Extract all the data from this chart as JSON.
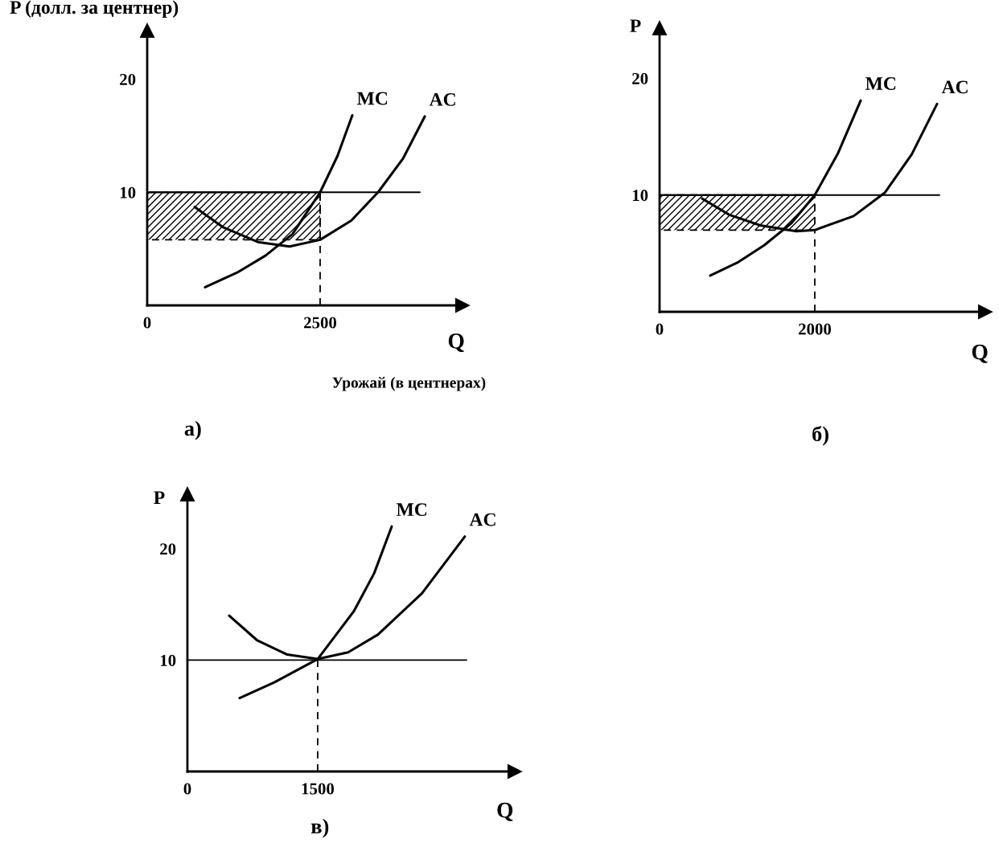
{
  "chart_data": [
    {
      "type": "line",
      "title": "а)",
      "xlabel": "Q",
      "ylabel": "P (долл. за центнер)",
      "annotations": [
        "Урожай (в центнерах)"
      ],
      "xlim": [
        0,
        4558
      ],
      "ylim": [
        0,
        24.3
      ],
      "xticks": [
        0,
        2500
      ],
      "yticks": [
        10,
        20
      ],
      "series": [
        {
          "color": "#000000",
          "x": [
            0,
            2500
          ],
          "values": [
            10,
            10
          ],
          "lower": [
            5.8,
            5.8
          ],
          "upper": [
            10,
            10
          ]
        },
        {
          "color": "#000000",
          "x": [
            0,
            3942
          ],
          "values": [
            10,
            10
          ]
        },
        {
          "color": "#000000",
          "line_style": "dashed",
          "x": [
            2500,
            2500
          ],
          "values": [
            0,
            10
          ]
        },
        {
          "name": "MC",
          "color": "#000000",
          "x": [
            837,
            1300,
            1709,
            2100,
            2500,
            2750,
            2965
          ],
          "values": [
            1.6,
            2.9,
            4.4,
            6.3,
            10,
            13.2,
            16.8
          ]
        },
        {
          "name": "AC",
          "color": "#000000",
          "x": [
            686,
            1100,
            1600,
            2058,
            2500,
            2950,
            3337,
            3700,
            4012
          ],
          "values": [
            8.7,
            6.9,
            5.6,
            5.2,
            5.8,
            7.5,
            10,
            13,
            16.7
          ]
        }
      ]
    },
    {
      "type": "line",
      "title": "б)",
      "xlabel": "Q",
      "ylabel": "P",
      "xlim": [
        0,
        4197
      ],
      "ylim": [
        0,
        24.3
      ],
      "xticks": [
        0,
        2000
      ],
      "yticks": [
        10,
        20
      ],
      "series": [
        {
          "color": "#000000",
          "x": [
            0,
            2000
          ],
          "values": [
            10,
            10
          ],
          "lower": [
            7.0,
            7.0
          ],
          "upper": [
            10,
            10
          ]
        },
        {
          "color": "#000000",
          "x": [
            0,
            3606
          ],
          "values": [
            10,
            10
          ]
        },
        {
          "color": "#000000",
          "line_style": "dashed",
          "x": [
            2000,
            2000
          ],
          "values": [
            0,
            7.0
          ]
        },
        {
          "name": "MC",
          "color": "#000000",
          "x": [
            653,
            1000,
            1347,
            1700,
            2000,
            2300,
            2591
          ],
          "values": [
            3.1,
            4.2,
            5.7,
            7.6,
            10,
            13.6,
            18.1
          ]
        },
        {
          "name": "AC",
          "color": "#000000",
          "x": [
            549,
            900,
            1300,
            1762,
            2000,
            2500,
            2902,
            3250,
            3575
          ],
          "values": [
            9.7,
            8.3,
            7.4,
            6.9,
            7.0,
            8.2,
            10.2,
            13.5,
            17.8
          ]
        }
      ]
    },
    {
      "type": "line",
      "title": "в)",
      "xlabel": "Q",
      "ylabel": "P",
      "xlim": [
        0,
        3769
      ],
      "ylim": [
        0,
        24.9
      ],
      "xticks": [
        0,
        1500
      ],
      "yticks": [
        10,
        20
      ],
      "series": [
        {
          "color": "#000000",
          "x": [
            0,
            3213
          ],
          "values": [
            10,
            10
          ]
        },
        {
          "color": "#000000",
          "line_style": "dashed",
          "x": [
            1500,
            1500
          ],
          "values": [
            0,
            10
          ]
        },
        {
          "name": "MC",
          "color": "#000000",
          "x": [
            602,
            1000,
            1500,
            1917,
            2150,
            2352
          ],
          "values": [
            6.6,
            8.0,
            10.1,
            14.4,
            17.8,
            22.0
          ]
        },
        {
          "name": "AC",
          "color": "#000000",
          "x": [
            481,
            800,
            1150,
            1500,
            1850,
            2194,
            2700,
            3194
          ],
          "values": [
            14.0,
            11.8,
            10.5,
            10.1,
            10.7,
            12.3,
            16,
            21.1
          ]
        }
      ]
    }
  ]
}
